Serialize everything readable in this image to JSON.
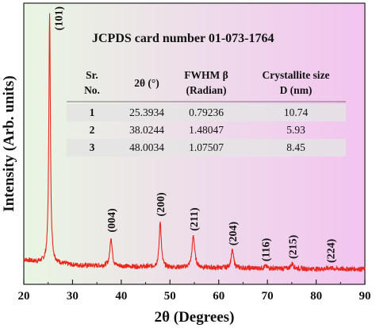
{
  "chart_data": {
    "type": "line",
    "title": "",
    "xlabel": "2θ (Degrees)",
    "ylabel": "Intensity (Arb. units)",
    "xlim": [
      20,
      90
    ],
    "xticks": [
      "20",
      "30",
      "40",
      "50",
      "60",
      "70",
      "80",
      "90"
    ],
    "grid": false,
    "legend": "none",
    "colors": {
      "line": "#e8281e",
      "bg_left": "#e9f6e3",
      "bg_right": "#f3c4f0",
      "table_row": "#e4e4e4"
    },
    "background_peaks": [
      [
        20,
        0.075
      ],
      [
        22,
        0.068
      ],
      [
        24,
        0.064
      ],
      [
        27,
        0.06
      ],
      [
        30,
        0.055
      ],
      [
        35,
        0.052
      ],
      [
        40,
        0.05
      ],
      [
        45,
        0.048
      ],
      [
        50,
        0.046
      ],
      [
        55,
        0.045
      ],
      [
        60,
        0.044
      ],
      [
        65,
        0.043
      ],
      [
        70,
        0.042
      ],
      [
        75,
        0.041
      ],
      [
        80,
        0.04
      ],
      [
        85,
        0.04
      ],
      [
        90,
        0.04
      ]
    ],
    "peaks": [
      {
        "label": "(101)",
        "x": 25.3,
        "y": 1.0,
        "width": 0.38
      },
      {
        "label": "(004)",
        "x": 37.9,
        "y": 0.16,
        "width": 0.55
      },
      {
        "label": "(200)",
        "x": 48.0,
        "y": 0.22,
        "width": 0.5
      },
      {
        "label": "(211)",
        "x": 54.8,
        "y": 0.165,
        "width": 0.65
      },
      {
        "label": "(204)",
        "x": 62.8,
        "y": 0.11,
        "width": 0.6
      },
      {
        "label": "(116)",
        "x": 69.6,
        "y": 0.05,
        "width": 0.8
      },
      {
        "label": "(215)",
        "x": 75.1,
        "y": 0.06,
        "width": 0.7
      },
      {
        "label": "(224)",
        "x": 82.9,
        "y": 0.045,
        "width": 0.8
      }
    ],
    "annotation": "JCPDS card number 01-073-1764",
    "table": {
      "headers": [
        [
          "Sr.",
          "No."
        ],
        [
          "2θ (°)",
          ""
        ],
        [
          "FWHM β",
          "(Radian)"
        ],
        [
          "Crystallite size",
          "D (nm)"
        ]
      ],
      "rows": [
        [
          "1",
          "25.3934",
          "0.79236",
          "10.74"
        ],
        [
          "2",
          "38.0244",
          "1.48047",
          "5.93"
        ],
        [
          "3",
          "48.0034",
          "1.07507",
          "8.45"
        ]
      ]
    }
  }
}
